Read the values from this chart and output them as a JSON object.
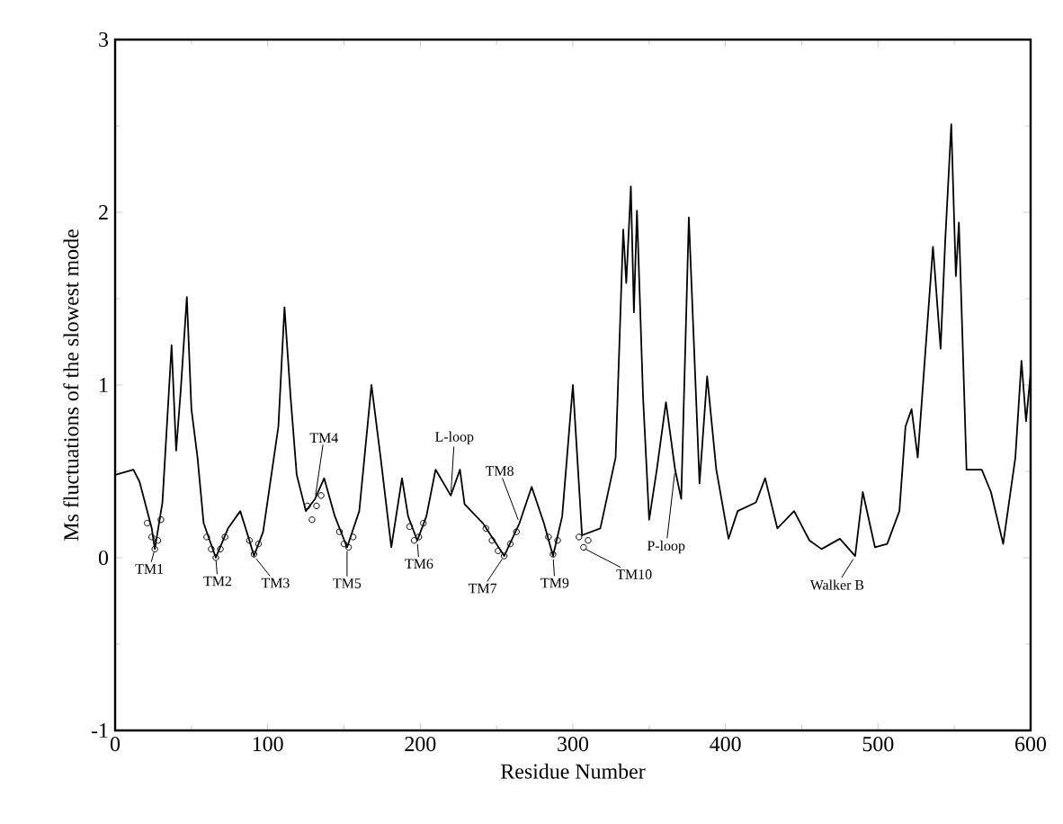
{
  "chart_data": {
    "type": "line",
    "xlabel": "Residue Number",
    "ylabel": "Ms fluctuations of the slowest mode",
    "xlim": [
      0,
      600
    ],
    "ylim": [
      -1,
      3
    ],
    "xticks": [
      0,
      100,
      200,
      300,
      400,
      500,
      600
    ],
    "yticks": [
      -1,
      0,
      1,
      2,
      3
    ],
    "series": [
      {
        "type": "line",
        "color": "#000000",
        "x": [
          0,
          12,
          16,
          24,
          26,
          31,
          37,
          40,
          43,
          47,
          50,
          54,
          58,
          66,
          74,
          82,
          88,
          91,
          97,
          107,
          111,
          115,
          119,
          125,
          131,
          137,
          144,
          152,
          160,
          168,
          174,
          181,
          188,
          192,
          198,
          204,
          210,
          220,
          226,
          229,
          241,
          255,
          265,
          273,
          281,
          287,
          293,
          300,
          306,
          318,
          328,
          333,
          335,
          338,
          340,
          342,
          346,
          350,
          355,
          361,
          367,
          371,
          376,
          383,
          388,
          394,
          402,
          408,
          420,
          426,
          434,
          445,
          455,
          463,
          475,
          485,
          490,
          498,
          506,
          514,
          518,
          522,
          526,
          536,
          541,
          544,
          548,
          551,
          553,
          558,
          568,
          574,
          582,
          590,
          594,
          597,
          600
        ],
        "values": [
          0.48,
          0.51,
          0.44,
          0.17,
          0.05,
          0.32,
          1.23,
          0.62,
          0.97,
          1.51,
          0.86,
          0.58,
          0.2,
          0.0,
          0.17,
          0.27,
          0.1,
          0.01,
          0.15,
          0.76,
          1.45,
          0.93,
          0.48,
          0.27,
          0.34,
          0.46,
          0.24,
          0.06,
          0.27,
          1.0,
          0.58,
          0.06,
          0.46,
          0.24,
          0.1,
          0.24,
          0.51,
          0.36,
          0.51,
          0.31,
          0.2,
          0.01,
          0.2,
          0.41,
          0.2,
          0.01,
          0.24,
          1.0,
          0.13,
          0.17,
          0.58,
          1.9,
          1.59,
          2.15,
          1.42,
          2.01,
          0.93,
          0.22,
          0.51,
          0.9,
          0.51,
          0.34,
          1.97,
          0.43,
          1.05,
          0.51,
          0.11,
          0.27,
          0.32,
          0.46,
          0.17,
          0.27,
          0.1,
          0.05,
          0.11,
          0.01,
          0.38,
          0.06,
          0.08,
          0.27,
          0.76,
          0.86,
          0.58,
          1.8,
          1.21,
          1.83,
          2.51,
          1.63,
          1.94,
          0.51,
          0.51,
          0.38,
          0.08,
          0.58,
          1.14,
          0.79,
          1.07
        ]
      },
      {
        "type": "scatter",
        "color": "#000000",
        "marker": "circle",
        "x": [
          21,
          24,
          26,
          28,
          30,
          60,
          63,
          66,
          69,
          72,
          88,
          91,
          94,
          126,
          129,
          132,
          135,
          147,
          150,
          153,
          156,
          193,
          196,
          199,
          202,
          243,
          247,
          251,
          255,
          259,
          263,
          284,
          287,
          290,
          304,
          307,
          310
        ],
        "values": [
          0.2,
          0.12,
          0.05,
          0.1,
          0.22,
          0.12,
          0.05,
          0.0,
          0.05,
          0.12,
          0.1,
          0.02,
          0.08,
          0.3,
          0.22,
          0.3,
          0.36,
          0.15,
          0.08,
          0.06,
          0.12,
          0.18,
          0.1,
          0.12,
          0.2,
          0.17,
          0.1,
          0.04,
          0.01,
          0.08,
          0.15,
          0.12,
          0.02,
          0.1,
          0.12,
          0.06,
          0.1
        ]
      }
    ],
    "annotations": [
      {
        "text": "TM1",
        "x": 26,
        "y": 0.05
      },
      {
        "text": "TM2",
        "x": 66,
        "y": 0.0
      },
      {
        "text": "TM3",
        "x": 91,
        "y": 0.01
      },
      {
        "text": "TM4",
        "x": 131,
        "y": 0.34
      },
      {
        "text": "TM5",
        "x": 152,
        "y": 0.06
      },
      {
        "text": "TM6",
        "x": 198,
        "y": 0.1
      },
      {
        "text": "L-loop",
        "x": 220,
        "y": 0.36
      },
      {
        "text": "TM8",
        "x": 265,
        "y": 0.2
      },
      {
        "text": "TM7",
        "x": 255,
        "y": 0.01
      },
      {
        "text": "TM9",
        "x": 287,
        "y": 0.01
      },
      {
        "text": "TM10",
        "x": 306,
        "y": 0.06
      },
      {
        "text": "P-loop",
        "x": 367,
        "y": 0.51
      },
      {
        "text": "Walker B",
        "x": 485,
        "y": 0.01
      }
    ]
  }
}
